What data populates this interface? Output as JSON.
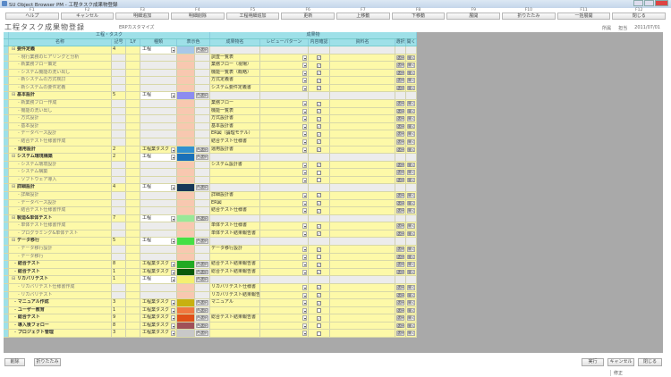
{
  "window": {
    "title": "SU Object Browser PM - 工程タスク成果物登録"
  },
  "toolbar": [
    {
      "key": "F1",
      "label": "ヘルプ"
    },
    {
      "key": "F2",
      "label": "キャンセル"
    },
    {
      "key": "F3",
      "label": "明細追加"
    },
    {
      "key": "F4",
      "label": "明細削除"
    },
    {
      "key": "F5",
      "label": "工程明細追加"
    },
    {
      "key": "F6",
      "label": "更新"
    },
    {
      "key": "F7",
      "label": "上移動"
    },
    {
      "key": "F8",
      "label": "下移動"
    },
    {
      "key": "F9",
      "label": "展開"
    },
    {
      "key": "F10",
      "label": "折りたたみ"
    },
    {
      "key": "F11",
      "label": "一括展開"
    },
    {
      "key": "F12",
      "label": "閉じる"
    }
  ],
  "page": {
    "title": "工程タスク成果物登録",
    "subtitle": "ERPカスタマイズ"
  },
  "user": {
    "dept": "所属",
    "name": "担当",
    "date": "2011/07/01"
  },
  "headers": {
    "group_task": "工程・タスク",
    "group_product": "成果物",
    "name": "名称",
    "code": "記号",
    "f": "1/f",
    "kind": "種類",
    "color": "表示色",
    "product": "成果物名",
    "review": "レビューパターン",
    "check": "内容確認",
    "doc": "資料名",
    "select": "選択",
    "open": "開く"
  },
  "labels": {
    "color_select": "色選択",
    "select": "選択",
    "open": "開く"
  },
  "rows": [
    {
      "type": "phase",
      "name": "要件定義",
      "code": "4",
      "kind": "工程",
      "color": "#a8c8e8"
    },
    {
      "type": "sub",
      "name": "現行業務のヒアリングと分析",
      "product": "調査一覧表",
      "checked": true
    },
    {
      "type": "sub",
      "name": "新業務フロー策定",
      "product": "業務フロー（現場）",
      "checked": true
    },
    {
      "type": "sub",
      "name": "システム機能の洗い出し",
      "product": "機能一覧表（概略）",
      "checked": true
    },
    {
      "type": "sub",
      "name": "新システムの方式検討",
      "product": "方式定義書",
      "checked": true
    },
    {
      "type": "sub",
      "name": "新システムの要件定義",
      "product": "システム要件定義書",
      "checked": true
    },
    {
      "type": "phase",
      "name": "基本設計",
      "code": "5",
      "kind": "工程",
      "color": "#8c8cf0"
    },
    {
      "type": "sub",
      "name": "新業務フロー作成",
      "product": "業務フロー",
      "checked": true
    },
    {
      "type": "sub",
      "name": "機能の洗い出し",
      "product": "機能一覧表",
      "checked": true
    },
    {
      "type": "sub",
      "name": "方式設計",
      "product": "方式設計書",
      "checked": true
    },
    {
      "type": "sub",
      "name": "基本設計",
      "product": "基本設計書",
      "checked": true
    },
    {
      "type": "sub",
      "name": "データベース設計",
      "product": "ER図（論理モデル）",
      "checked": true
    },
    {
      "type": "sub",
      "name": "結合テスト仕様書作成",
      "product": "結合テスト仕様書",
      "checked": true
    },
    {
      "type": "task",
      "name": "運用設計",
      "code": "2",
      "kind": "工程業タスク",
      "color": "#3090d0",
      "product": "運用設計書",
      "checked": true
    },
    {
      "type": "phase",
      "name": "システム環境構築",
      "code": "2",
      "kind": "工程",
      "color": "#1a70b8"
    },
    {
      "type": "sub",
      "name": "システム環境設計",
      "product": "システム設計書",
      "checked": true
    },
    {
      "type": "sub",
      "name": "システム構築",
      "product": "",
      "checked": false
    },
    {
      "type": "sub",
      "name": "ソフトウェア導入",
      "product": "",
      "checked": false
    },
    {
      "type": "phase",
      "name": "詳細設計",
      "code": "4",
      "kind": "工程",
      "color": "#183858"
    },
    {
      "type": "sub",
      "name": "詳細設計",
      "product": "詳細設計書",
      "checked": true
    },
    {
      "type": "sub",
      "name": "データベース設計",
      "product": "ER図",
      "checked": true
    },
    {
      "type": "sub",
      "name": "結合テスト仕様書作成",
      "product": "結合テスト仕様書",
      "checked": true
    },
    {
      "type": "phase",
      "name": "製造&単体テスト",
      "code": "7",
      "kind": "工程",
      "color": "#98e898"
    },
    {
      "type": "sub",
      "name": "単体テスト仕様書作成",
      "product": "単体テスト仕様書",
      "checked": true
    },
    {
      "type": "sub",
      "name": "プログラミング&単体テスト",
      "product": "単体テスト結果報告書",
      "checked": true
    },
    {
      "type": "phase",
      "name": "データ移行",
      "code": "5",
      "kind": "工程",
      "color": "#44e044"
    },
    {
      "type": "sub",
      "name": "データ移行設計",
      "product": "データ移行設計",
      "checked": true
    },
    {
      "type": "sub",
      "name": "データ移行",
      "product": "",
      "checked": false
    },
    {
      "type": "task",
      "name": "結合テスト",
      "code": "8",
      "kind": "工程業タスク",
      "color": "#22aa22",
      "product": "結合テスト結果報告書",
      "checked": true
    },
    {
      "type": "task",
      "name": "総合テスト",
      "code": "1",
      "kind": "工程業タスク",
      "color": "#0a5a0a",
      "product": "総合テスト結果報告書",
      "checked": true
    },
    {
      "type": "phase",
      "name": "リカバリテスト",
      "code": "1",
      "kind": "工程",
      "color": "#f4f070"
    },
    {
      "type": "sub",
      "name": "リカバリテスト仕様書作成",
      "product": "リカバリテスト仕様書",
      "checked": true
    },
    {
      "type": "sub",
      "name": "リカバリテスト",
      "product": "リカバリテスト結果報告",
      "checked": true
    },
    {
      "type": "task",
      "name": "マニュアル作成",
      "code": "3",
      "kind": "工程業タスク",
      "color": "#c8b010",
      "product": "マニュアル",
      "checked": true
    },
    {
      "type": "task",
      "name": "ユーザー教育",
      "code": "1",
      "kind": "工程業タスク",
      "color": "#f07840",
      "product": "",
      "checked": false
    },
    {
      "type": "task",
      "name": "総合テスト",
      "code": "9",
      "kind": "工程業タスク",
      "color": "#e05018",
      "product": "総合テスト結果報告書",
      "checked": true
    },
    {
      "type": "task",
      "name": "導入後フォロー",
      "code": "8",
      "kind": "工程業タスク",
      "color": "#a05058",
      "product": "",
      "checked": false
    },
    {
      "type": "task",
      "name": "プロジェクト管理",
      "code": "3",
      "kind": "工程業タスク",
      "color": "#c8c8c8",
      "product": "",
      "checked": false
    }
  ],
  "child_color": "#f8c8b0",
  "footer": {
    "delete": "削除",
    "collapse": "折りたたみ",
    "run": "実行",
    "cancel": "キャンセル",
    "close": "閉じる",
    "status": "修正"
  }
}
